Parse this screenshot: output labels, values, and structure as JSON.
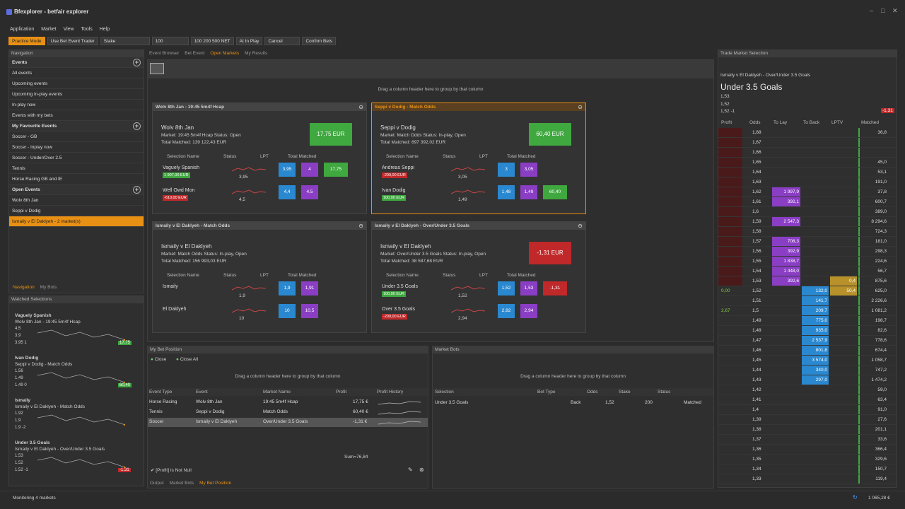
{
  "app": {
    "title": "Bfexplorer - betfair explorer"
  },
  "menu": [
    "Application",
    "Market",
    "View",
    "Tools",
    "Help"
  ],
  "toolbar": {
    "practice": "Practice Mode",
    "use_bet_event_trader": "Use Bet Event Trader",
    "stake_select": "Stake",
    "stake_value": "100",
    "quick_stakes": "100  200  500  NET",
    "at_in_play": "At In Play",
    "cancel": "Cancel",
    "confirm": "Confirm Bets"
  },
  "nav": {
    "title": "Navigation",
    "events_hdr": "Events",
    "items": [
      "All events",
      "Upcoming events",
      "Upcoming in-play events",
      "In-play now",
      "Events with my bets"
    ],
    "fav_hdr": "My Favourite Events",
    "fav": [
      "Soccer - GB",
      "Soccer - Inplay now",
      "Soccer - Under/Over 2.5",
      "Tennis",
      "Horse Racing GB and IE"
    ],
    "open_hdr": "Open Events",
    "open": [
      "Wolv 8th Jan",
      "Seppi v Dodig",
      "Ismaily v El Daklyeh - 2 market(s)"
    ],
    "tab_nav": "Navigation",
    "tab_bots": "My Bots"
  },
  "watched": {
    "title": "Watched Selections",
    "items": [
      {
        "name": "Vaguely Spanish",
        "market": "Wolv 8th Jan - 19:45 5m4f Hcap",
        "y1": "4,5",
        "y2": "3,9",
        "y3": "3,95 1",
        "badge": "17,75",
        "badgecolor": "#3fa83f"
      },
      {
        "name": "Ivan Dodig",
        "market": "Seppi v Dodig - Match Odds",
        "y1": "1,56",
        "y2": "1,49",
        "y3": "1,49 0",
        "badge": "60,40",
        "badgecolor": "#3fa83f"
      },
      {
        "name": "Ismaily",
        "market": "Ismaily v El Daklyeh - Match Odds",
        "y1": "1,92",
        "y2": "1,9",
        "y3": "1,9  -2",
        "badge": "",
        "badgecolor": ""
      },
      {
        "name": "Under 3.5 Goals",
        "market": "Ismaily v El Daklyeh - Over/Under 3.5 Goals",
        "y1": "1,53",
        "y2": "1,52",
        "y3": "1,52  -1",
        "badge": "-1,31",
        "badgecolor": "#c0282a"
      }
    ]
  },
  "center_tabs": [
    "Event Browser",
    "Bet Event",
    "Open Markets",
    "My Results"
  ],
  "group_hint": "Drag a column header here to group by that column",
  "cols": {
    "sel": "Selection Name",
    "status": "Status",
    "lpt": "LPT",
    "tm": "Total Matched"
  },
  "markets": [
    {
      "header": "Wolv 8th Jan - 19:45 5m4f Hcap",
      "title": "Wolv 8th Jan",
      "info": "Market: 19:45 5m4f Hcap Status: Open",
      "tm": "Total Matched: 139 122,43 EUR",
      "pnl": "17,75 EUR",
      "pnlcolor": "green",
      "rows": [
        {
          "name": "Vaguely Spanish",
          "tag": "1 907,00 EUR",
          "tagc": "green",
          "lpt": "3,95",
          "b1": "3,95",
          "b2": "4",
          "b3": "17,75"
        },
        {
          "name": "Well Owd Mon",
          "tag": "-610,00 EUR",
          "tagc": "red",
          "lpt": "4,5",
          "b1": "4,4",
          "b2": "4,5",
          "b3": ""
        }
      ]
    },
    {
      "header": "Seppi v Dodig - Match Odds",
      "title": "Seppi v Dodig",
      "info": "Market: Match Odds Status: In-play, Open",
      "tm": "Total Matched: 697 392,02 EUR",
      "pnl": "60,40 EUR",
      "pnlcolor": "green",
      "rows": [
        {
          "name": "Andreas Seppi",
          "tag": "-200,00 EUR",
          "tagc": "red",
          "lpt": "3,05",
          "b1": "3",
          "b2": "3,05",
          "b3": ""
        },
        {
          "name": "Ivan Dodig",
          "tag": "100,00 EUR",
          "tagc": "green",
          "lpt": "1,49",
          "b1": "1,48",
          "b2": "1,49",
          "b3": "60,40"
        }
      ]
    },
    {
      "header": "Ismaily v El Daklyeh - Match Odds",
      "title": "Ismaily v El Daklyeh",
      "info": "Market: Match Odds Status: In-play, Open",
      "tm": "Total Matched: 156 993,03 EUR",
      "pnl": "",
      "pnlcolor": "",
      "rows": [
        {
          "name": "Ismaily",
          "tag": "",
          "tagc": "",
          "lpt": "1,9",
          "b1": "1,9",
          "b2": "1,91",
          "b3": ""
        },
        {
          "name": "El Daklyeh",
          "tag": "",
          "tagc": "",
          "lpt": "10",
          "b1": "10",
          "b2": "10,5",
          "b3": ""
        }
      ]
    },
    {
      "header": "Ismaily v El Daklyeh - Over/Under 3.5 Goals",
      "title": "Ismaily v El Daklyeh",
      "info": "Market: Over/Under 3.5 Goals Status: In-play, Open",
      "tm": "Total Matched: 38 587,68 EUR",
      "pnl": "-1,31 EUR",
      "pnlcolor": "red",
      "rows": [
        {
          "name": "Under 3.5 Goals",
          "tag": "100,00 EUR",
          "tagc": "green",
          "lpt": "1,52",
          "b1": "1,52",
          "b2": "1,53",
          "b3": "-1,31"
        },
        {
          "name": "Over 3.5 Goals",
          "tag": "-200,00 EUR",
          "tagc": "red",
          "lpt": "2,94",
          "b1": "2,92",
          "b2": "2,94",
          "b3": ""
        }
      ]
    }
  ],
  "position": {
    "title": "My Bet Position",
    "close": "Close",
    "close_all": "Close All",
    "hint": "Drag a column header here to group by that column",
    "cols": [
      "Event Type",
      "Event",
      "Market Name",
      "Profit",
      "Profit History"
    ],
    "rows": [
      [
        "Horse Racing",
        "Wolv 8th Jan",
        "19:45 5m4f Hcap",
        "17,75 €"
      ],
      [
        "Tennis",
        "Seppi v Dodig",
        "Match Odds",
        "60,40 €"
      ],
      [
        "Soccer",
        "Ismaily v El Daklyeh",
        "Over/Under 3.5 Goals",
        "-1,31 €"
      ]
    ],
    "sum": "Sum=76,84",
    "filter": "[Profit] Is Not Null",
    "tabs": [
      "Output",
      "Market Bots",
      "My Bet Position"
    ]
  },
  "bots": {
    "title": "Market Bots",
    "hint": "Drag a column header here to group by that column",
    "cols": [
      "Selection",
      "Bet Type",
      "Odds",
      "Stake",
      "Status"
    ],
    "row": [
      "Under 3.5 Goals",
      "Back",
      "1,52",
      "200",
      "Matched"
    ]
  },
  "trade": {
    "title": "Trade Market Selection",
    "market": "Ismaily v El Daklyeh - Over/Under 3.5 Goals",
    "sel": "Under 3.5 Goals",
    "y1": "1,53",
    "y2": "1,52",
    "y3": "1,52  -1",
    "pnl": "-1,31",
    "cols": [
      "Profit",
      "Odds",
      "To Lay",
      "To Back",
      "LPTV",
      "Matched"
    ],
    "ladder": [
      [
        "",
        "1,68",
        "",
        "",
        "",
        "36,8"
      ],
      [
        "",
        "1,67",
        "",
        "",
        "",
        ""
      ],
      [
        "",
        "1,66",
        "",
        "",
        "",
        ""
      ],
      [
        "",
        "1,65",
        "",
        "",
        "",
        "45,0"
      ],
      [
        "",
        "1,64",
        "",
        "",
        "",
        "53,1"
      ],
      [
        "",
        "1,63",
        "",
        "",
        "",
        "191,0"
      ],
      [
        "",
        "1,62",
        "1 997,9",
        "",
        "",
        "37,8"
      ],
      [
        "",
        "1,61",
        "392,1",
        "",
        "",
        "600,7"
      ],
      [
        "",
        "1,6",
        "",
        "",
        "",
        "389,0"
      ],
      [
        "",
        "1,59",
        "2 547,3",
        "",
        "",
        "8 294,6"
      ],
      [
        "",
        "1,58",
        "",
        "",
        "",
        "724,3"
      ],
      [
        "",
        "1,57",
        "708,3",
        "",
        "",
        "181,0"
      ],
      [
        "",
        "1,56",
        "392,9",
        "",
        "",
        "298,3"
      ],
      [
        "",
        "1,55",
        "1 838,7",
        "",
        "",
        "224,6"
      ],
      [
        "",
        "1,54",
        "1 448,0",
        "",
        "",
        "56,7"
      ],
      [
        "",
        "1,53",
        "392,6",
        "",
        "0,4",
        "875,6"
      ],
      [
        "0,00",
        "1,52",
        "",
        "132,0",
        "50,4",
        "625,0"
      ],
      [
        "",
        "1,51",
        "",
        "141,7",
        "",
        "2 226,6"
      ],
      [
        "2,67",
        "1,5",
        "",
        "209,7",
        "",
        "1 081,2"
      ],
      [
        "",
        "1,49",
        "",
        "775,0",
        "",
        "198,7"
      ],
      [
        "",
        "1,48",
        "",
        "935,0",
        "",
        "82,6"
      ],
      [
        "",
        "1,47",
        "",
        "2 537,9",
        "",
        "778,6"
      ],
      [
        "",
        "1,46",
        "",
        "801,8",
        "",
        "674,4"
      ],
      [
        "",
        "1,45",
        "",
        "3 574,0",
        "",
        "1 058,7"
      ],
      [
        "",
        "1,44",
        "",
        "340,0",
        "",
        "747,2"
      ],
      [
        "",
        "1,43",
        "",
        "297,0",
        "",
        "1 474,2"
      ],
      [
        "",
        "1,42",
        "",
        "",
        "",
        "59,0"
      ],
      [
        "",
        "1,41",
        "",
        "",
        "",
        "63,4"
      ],
      [
        "",
        "1,4",
        "",
        "",
        "",
        "91,0"
      ],
      [
        "",
        "1,39",
        "",
        "",
        "",
        "27,6"
      ],
      [
        "",
        "1,38",
        "",
        "",
        "",
        "201,1"
      ],
      [
        "",
        "1,37",
        "",
        "",
        "",
        "33,6"
      ],
      [
        "",
        "1,36",
        "",
        "",
        "",
        "366,4"
      ],
      [
        "",
        "1,35",
        "",
        "",
        "",
        "329,6"
      ],
      [
        "",
        "1,34",
        "",
        "",
        "",
        "150,7"
      ],
      [
        "",
        "1,33",
        "",
        "",
        "",
        "119,4"
      ]
    ],
    "footer": "1 065,28 €"
  },
  "status": "Monitoring 4 markets"
}
